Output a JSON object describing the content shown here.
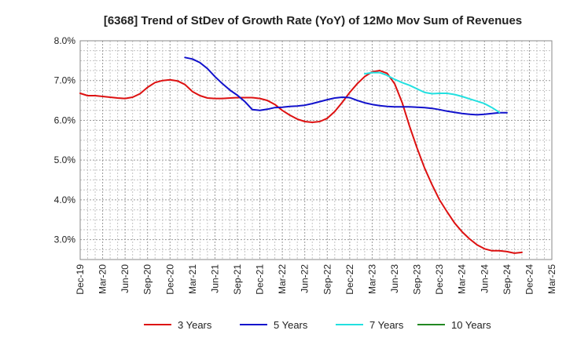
{
  "chart_data": {
    "type": "line",
    "title": "[6368]  Trend of StDev of Growth Rate (YoY) of 12Mo Mov Sum of Revenues",
    "xlabel": "",
    "ylabel": "",
    "ylim": [
      2.5,
      8.0
    ],
    "grid": true,
    "legend_position": "bottom",
    "x_ticks": [
      "Dec-19",
      "Mar-20",
      "Jun-20",
      "Sep-20",
      "Dec-20",
      "Mar-21",
      "Jun-21",
      "Sep-21",
      "Dec-21",
      "Mar-22",
      "Jun-22",
      "Sep-22",
      "Dec-22",
      "Mar-23",
      "Jun-23",
      "Sep-23",
      "Dec-23",
      "Mar-24",
      "Jun-24",
      "Sep-24",
      "Dec-24",
      "Mar-25"
    ],
    "y_ticks": [
      3.0,
      4.0,
      5.0,
      6.0,
      7.0,
      8.0
    ],
    "y_tick_labels": [
      "3.0%",
      "4.0%",
      "5.0%",
      "6.0%",
      "7.0%",
      "8.0%"
    ],
    "series": [
      {
        "name": "3 Years",
        "color": "#dd1111",
        "start_month": 0,
        "values": [
          6.68,
          6.62,
          6.62,
          6.6,
          6.58,
          6.56,
          6.55,
          6.58,
          6.67,
          6.83,
          6.95,
          7.0,
          7.02,
          6.99,
          6.9,
          6.72,
          6.62,
          6.56,
          6.55,
          6.55,
          6.56,
          6.57,
          6.57,
          6.57,
          6.55,
          6.5,
          6.4,
          6.25,
          6.13,
          6.03,
          5.97,
          5.95,
          5.97,
          6.05,
          6.22,
          6.45,
          6.7,
          6.92,
          7.1,
          7.22,
          7.25,
          7.18,
          6.92,
          6.45,
          5.85,
          5.3,
          4.8,
          4.38,
          4.0,
          3.7,
          3.42,
          3.2,
          3.02,
          2.87,
          2.77,
          2.72,
          2.72,
          2.7,
          2.66,
          2.68
        ]
      },
      {
        "name": "5 Years",
        "color": "#1111cc",
        "start_month": 14,
        "values": [
          7.58,
          7.54,
          7.45,
          7.3,
          7.1,
          6.92,
          6.76,
          6.63,
          6.47,
          6.27,
          6.25,
          6.28,
          6.32,
          6.33,
          6.35,
          6.36,
          6.38,
          6.42,
          6.47,
          6.52,
          6.56,
          6.58,
          6.57,
          6.5,
          6.44,
          6.4,
          6.37,
          6.35,
          6.34,
          6.34,
          6.34,
          6.33,
          6.32,
          6.3,
          6.27,
          6.23,
          6.2,
          6.17,
          6.15,
          6.14,
          6.15,
          6.17,
          6.19,
          6.19
        ]
      },
      {
        "name": "7 Years",
        "color": "#22e0e0",
        "start_month": 38,
        "values": [
          7.17,
          7.2,
          7.2,
          7.13,
          7.03,
          6.95,
          6.88,
          6.79,
          6.7,
          6.67,
          6.68,
          6.68,
          6.65,
          6.6,
          6.54,
          6.48,
          6.42,
          6.32,
          6.2
        ]
      },
      {
        "name": "10 Years",
        "color": "#228822",
        "start_month": 0,
        "values": []
      }
    ]
  }
}
